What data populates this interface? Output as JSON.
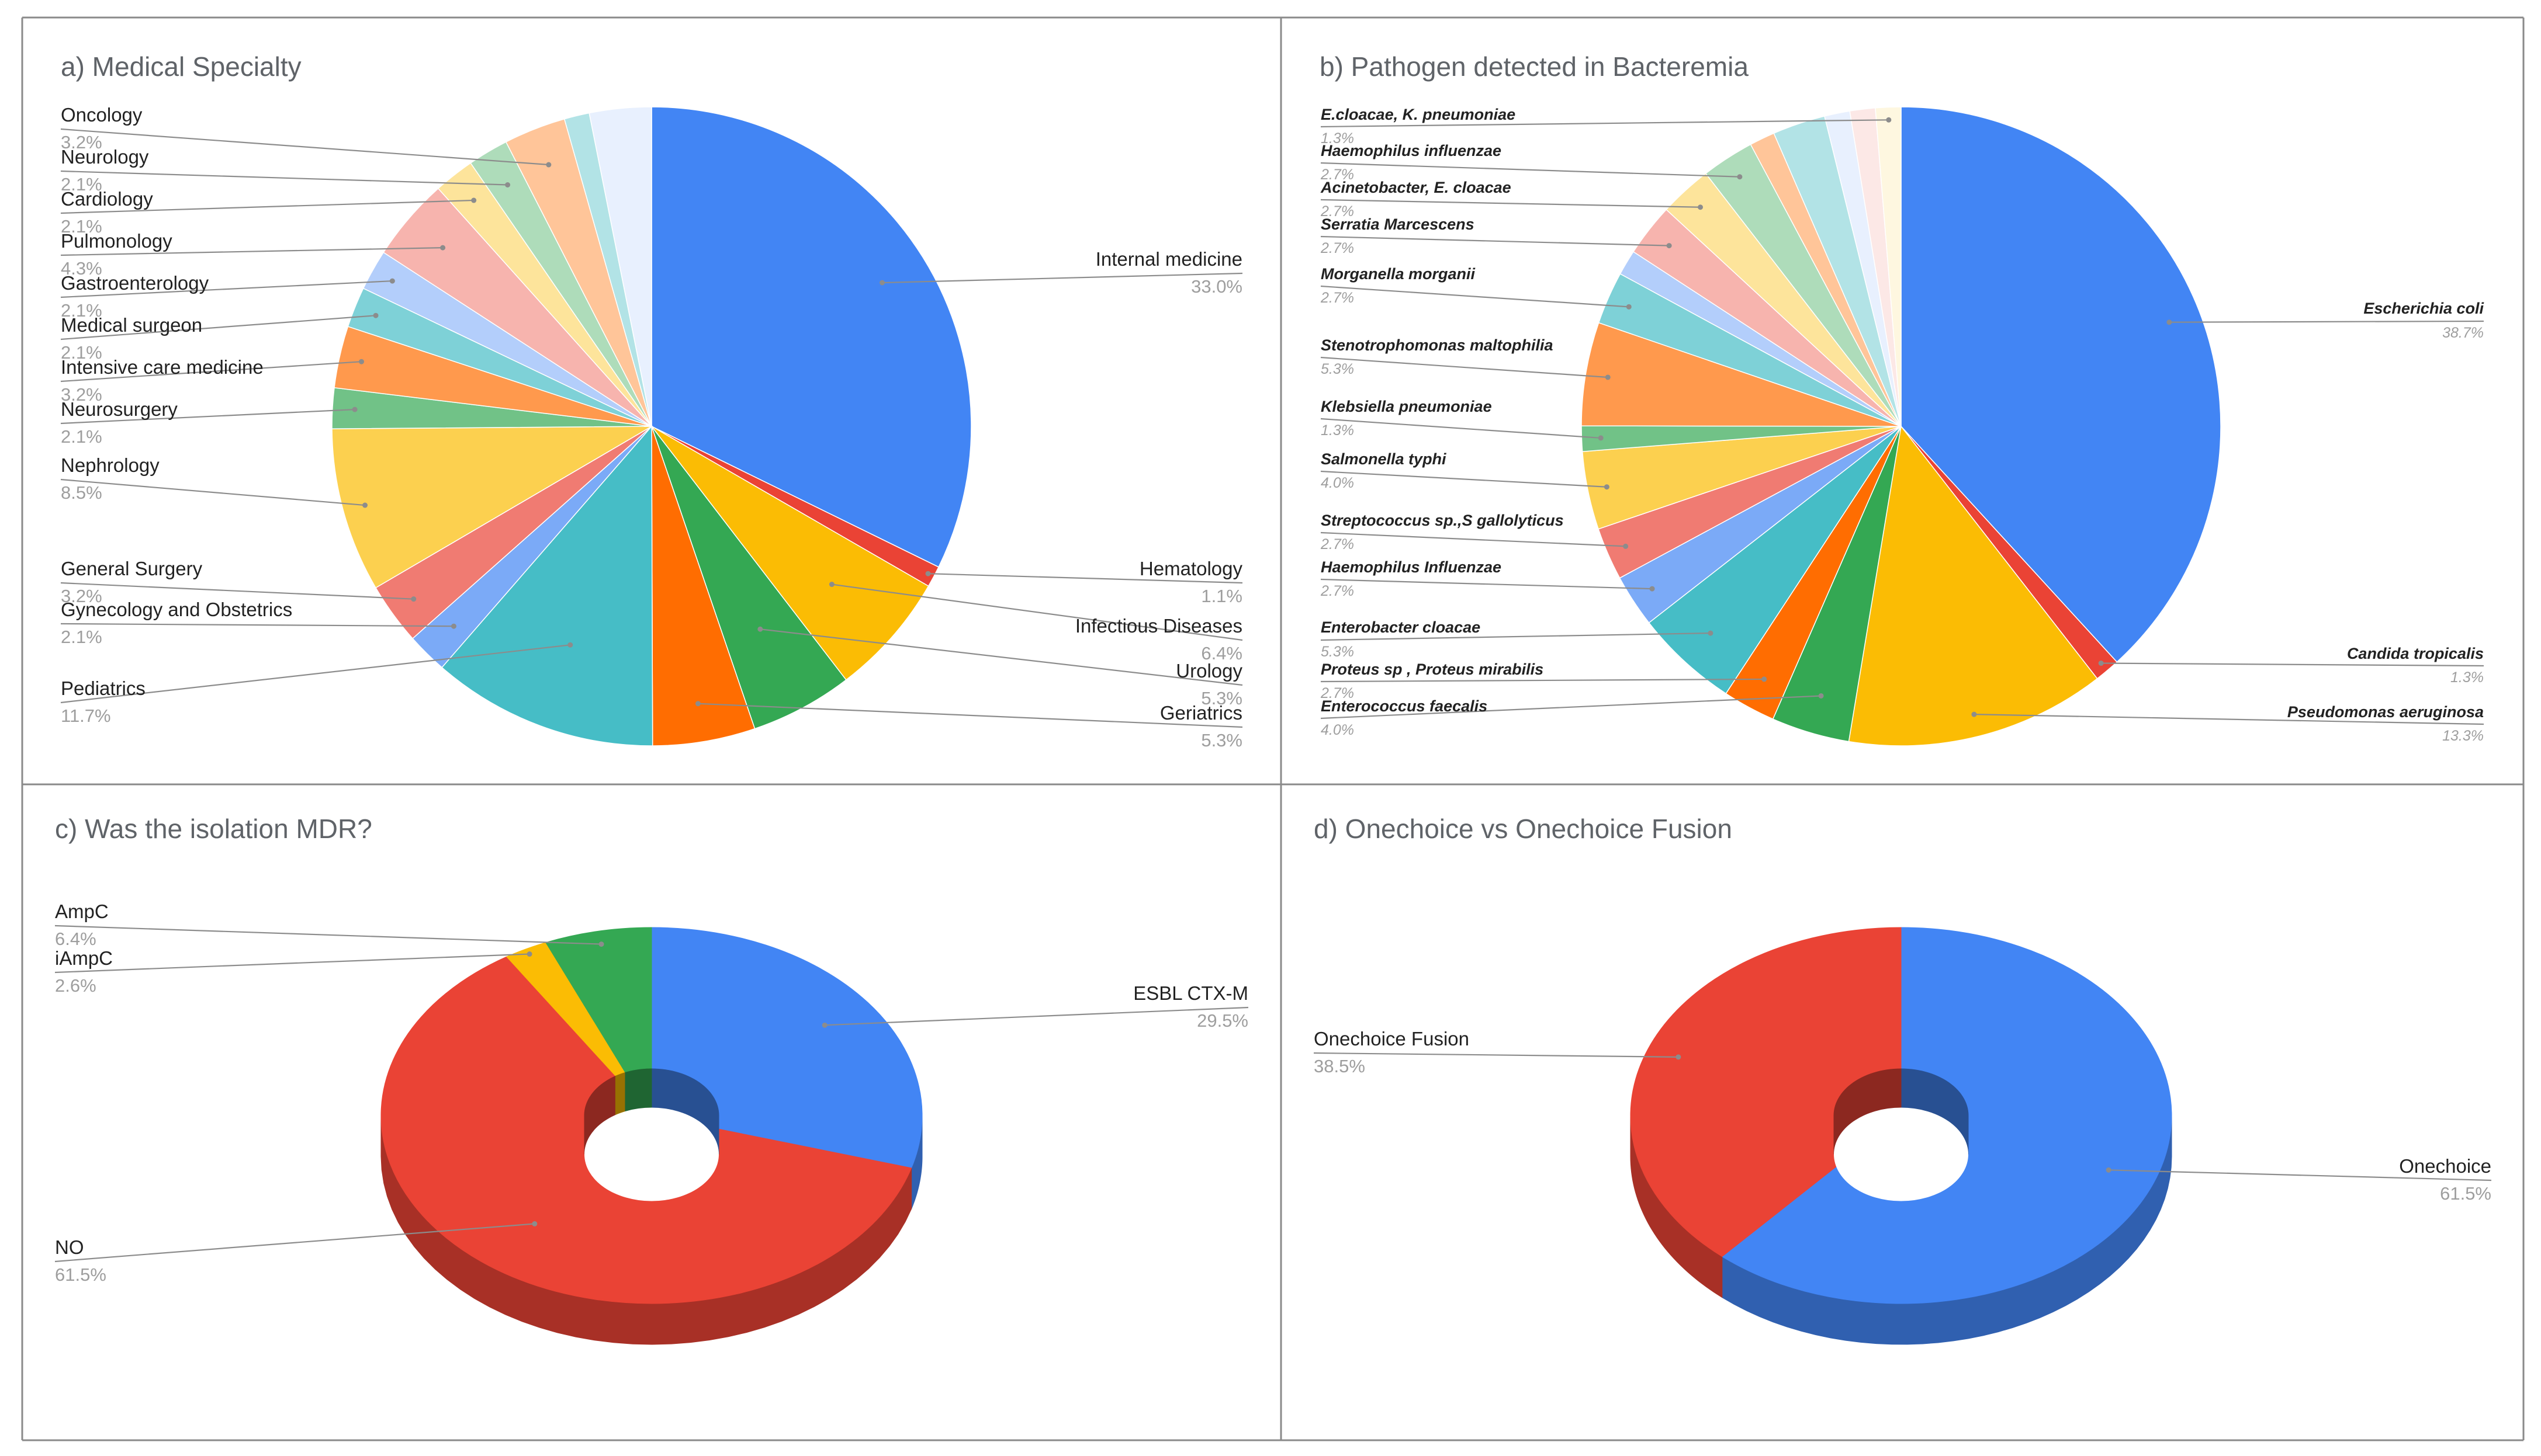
{
  "chart_data": [
    {
      "type": "pie",
      "title": "a) Medical Specialty",
      "slices": [
        {
          "label": "Internal medicine",
          "value": 33.0,
          "pct_label": "33.0%",
          "color": "#4285F4"
        },
        {
          "label": "Hematology",
          "value": 1.1,
          "pct_label": "1.1%",
          "color": "#EA4335"
        },
        {
          "label": "Infectious Diseases",
          "value": 6.4,
          "pct_label": "6.4%",
          "color": "#FBBC04"
        },
        {
          "label": "Urology",
          "value": 5.3,
          "pct_label": "5.3%",
          "color": "#34A853"
        },
        {
          "label": "Geriatrics",
          "value": 5.3,
          "pct_label": "5.3%",
          "color": "#FF6D01"
        },
        {
          "label": "Pediatrics",
          "value": 11.7,
          "pct_label": "11.7%",
          "color": "#46BDC6"
        },
        {
          "label": "Gynecology and Obstetrics",
          "value": 2.1,
          "pct_label": "2.1%",
          "color": "#7BAAF7"
        },
        {
          "label": "General Surgery",
          "value": 3.2,
          "pct_label": "3.2%",
          "color": "#F07B72"
        },
        {
          "label": "Nephrology",
          "value": 8.5,
          "pct_label": "8.5%",
          "color": "#FCD04F"
        },
        {
          "label": "Neurosurgery",
          "value": 2.1,
          "pct_label": "2.1%",
          "color": "#71C287"
        },
        {
          "label": "Intensive care medicine",
          "value": 3.2,
          "pct_label": "3.2%",
          "color": "#FF994D"
        },
        {
          "label": "Medical surgeon",
          "value": 2.1,
          "pct_label": "2.1%",
          "color": "#7ED1D7"
        },
        {
          "label": "Gastroenterology",
          "value": 2.1,
          "pct_label": "2.1%",
          "color": "#B3CEFB"
        },
        {
          "label": "Pulmonology",
          "value": 4.3,
          "pct_label": "4.3%",
          "color": "#F7B4AE"
        },
        {
          "label": "Cardiology",
          "value": 2.1,
          "pct_label": "2.1%",
          "color": "#FDE49B"
        },
        {
          "label": "Neurology",
          "value": 2.1,
          "pct_label": "2.1%",
          "color": "#AEDCBA"
        },
        {
          "label": "Oncology",
          "value": 3.2,
          "pct_label": "3.2%",
          "color": "#FFC599"
        },
        {
          "label": "",
          "value": 1.3,
          "pct_label": "",
          "color": "#B2E3E6"
        },
        {
          "label": "",
          "value": 3.2,
          "pct_label": "",
          "color": "#E8F0FE"
        }
      ]
    },
    {
      "type": "pie",
      "title": "b) Pathogen detected in Bacteremia",
      "slices": [
        {
          "label": "Escherichia coli",
          "value": 38.7,
          "pct_label": "38.7%",
          "color": "#4285F4"
        },
        {
          "label": "Candida tropicalis",
          "value": 1.3,
          "pct_label": "1.3%",
          "color": "#EA4335"
        },
        {
          "label": "Pseudomonas aeruginosa",
          "value": 13.3,
          "pct_label": "13.3%",
          "color": "#FBBC04"
        },
        {
          "label": "Enterococcus faecalis",
          "value": 4.0,
          "pct_label": "4.0%",
          "color": "#34A853"
        },
        {
          "label": "Proteus sp , Proteus mirabilis",
          "value": 2.7,
          "pct_label": "2.7%",
          "color": "#FF6D01"
        },
        {
          "label": "Enterobacter cloacae",
          "value": 5.3,
          "pct_label": "5.3%",
          "color": "#46BDC6"
        },
        {
          "label": "Haemophilus Influenzae",
          "value": 2.7,
          "pct_label": "2.7%",
          "color": "#7BAAF7"
        },
        {
          "label": "Streptococcus sp.,S gallolyticus",
          "value": 2.7,
          "pct_label": "2.7%",
          "color": "#F07B72"
        },
        {
          "label": "Salmonella typhi",
          "value": 4.0,
          "pct_label": "4.0%",
          "color": "#FCD04F"
        },
        {
          "label": "Klebsiella pneumoniae",
          "value": 1.3,
          "pct_label": "1.3%",
          "color": "#71C287"
        },
        {
          "label": "Stenotrophomonas maltophilia",
          "value": 5.3,
          "pct_label": "5.3%",
          "color": "#FF994D"
        },
        {
          "label": "Morganella morganii",
          "value": 2.7,
          "pct_label": "2.7%",
          "color": "#7ED1D7"
        },
        {
          "label": "",
          "value": 1.3,
          "pct_label": "",
          "color": "#B3CEFB"
        },
        {
          "label": "Serratia Marcescens",
          "value": 2.7,
          "pct_label": "2.7%",
          "color": "#F7B4AE"
        },
        {
          "label": "Acinetobacter, E. cloacae",
          "value": 2.7,
          "pct_label": "2.7%",
          "color": "#FDE49B"
        },
        {
          "label": "Haemophilus influenzae",
          "value": 2.7,
          "pct_label": "2.7%",
          "color": "#AEDCBA"
        },
        {
          "label": "",
          "value": 1.3,
          "pct_label": "",
          "color": "#FFC599"
        },
        {
          "label": "",
          "value": 2.7,
          "pct_label": "",
          "color": "#B2E3E6"
        },
        {
          "label": "",
          "value": 1.3,
          "pct_label": "",
          "color": "#E8F0FE"
        },
        {
          "label": "",
          "value": 1.3,
          "pct_label": "",
          "color": "#FCE8E6"
        },
        {
          "label": "E.cloacae, K. pneumoniae",
          "value": 1.3,
          "pct_label": "1.3%",
          "color": "#FEF7E0"
        }
      ]
    },
    {
      "type": "pie",
      "style": "3d-donut",
      "title": "c) Was the isolation MDR?",
      "slices": [
        {
          "label": "ESBL CTX-M",
          "value": 29.5,
          "pct_label": "29.5%",
          "color": "#4285F4"
        },
        {
          "label": "NO",
          "value": 61.5,
          "pct_label": "61.5%",
          "color": "#EA4335"
        },
        {
          "label": "iAmpC",
          "value": 2.6,
          "pct_label": "2.6%",
          "color": "#FBBC04"
        },
        {
          "label": "AmpC",
          "value": 6.4,
          "pct_label": "6.4%",
          "color": "#34A853"
        }
      ]
    },
    {
      "type": "pie",
      "style": "3d-donut",
      "title": "d) Onechoice vs Onechoice Fusion",
      "slices": [
        {
          "label": "Onechoice",
          "value": 61.5,
          "pct_label": "61.5%",
          "color": "#4285F4"
        },
        {
          "label": "Onechoice Fusion",
          "value": 38.5,
          "pct_label": "38.5%",
          "color": "#EA4335"
        }
      ]
    }
  ]
}
